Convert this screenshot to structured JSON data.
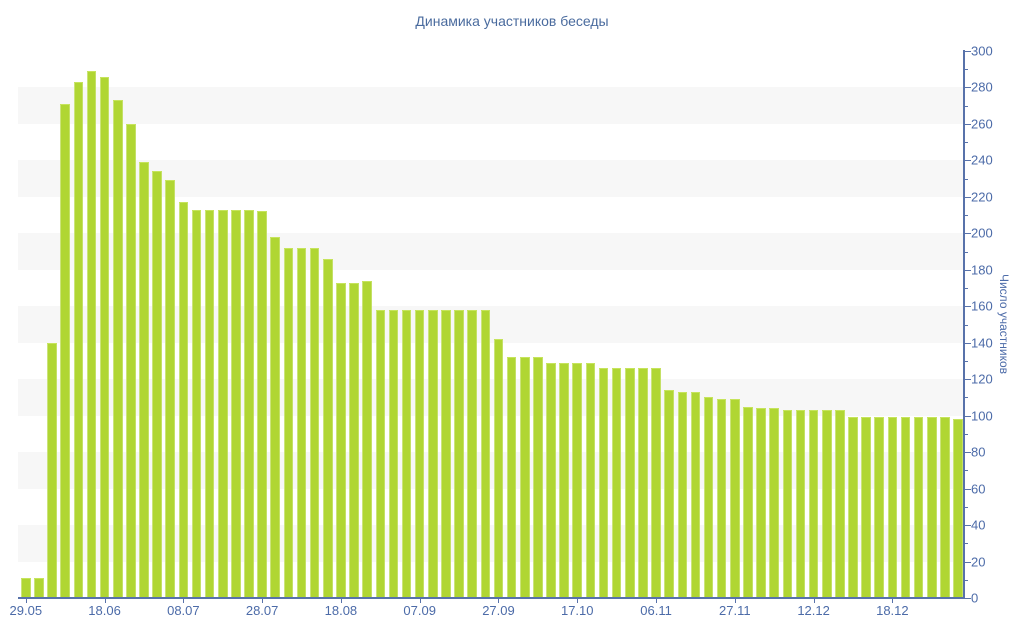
{
  "chart_data": {
    "type": "bar",
    "title": "Динамика участников беседы",
    "xlabel": "",
    "ylabel": "Число участников",
    "ylim": [
      0,
      300
    ],
    "y_tick_interval": 20,
    "y_minor_tick_interval": 10,
    "grid": "alternate horizontal gray bands",
    "grid_bands_y": [
      [
        20,
        40
      ],
      [
        60,
        80
      ],
      [
        100,
        120
      ],
      [
        140,
        160
      ],
      [
        180,
        200
      ],
      [
        220,
        240
      ],
      [
        260,
        280
      ]
    ],
    "legend": "none",
    "x_tick_labels": [
      "29.05",
      "18.06",
      "08.07",
      "28.07",
      "18.08",
      "07.09",
      "27.09",
      "17.10",
      "06.11",
      "27.11",
      "12.12",
      "18.12"
    ],
    "bars_per_x_label": 6,
    "values": [
      11,
      11,
      140,
      271,
      283,
      289,
      286,
      273,
      260,
      239,
      234,
      229,
      217,
      213,
      213,
      213,
      213,
      213,
      212,
      198,
      192,
      192,
      192,
      186,
      173,
      173,
      174,
      158,
      158,
      158,
      158,
      158,
      158,
      158,
      158,
      158,
      142,
      132,
      132,
      132,
      129,
      129,
      129,
      129,
      126,
      126,
      126,
      126,
      126,
      114,
      113,
      113,
      110,
      109,
      109,
      105,
      104,
      104,
      103,
      103,
      103,
      103,
      103,
      99,
      99,
      99,
      99,
      99,
      99,
      99,
      99,
      98
    ],
    "colors": {
      "bar": "#b0d633",
      "band": "#f7f7f7",
      "axis": "#5872aa",
      "tick_text": "#4c6ba8",
      "title_text": "#4a6b9e",
      "background": "#ffffff"
    }
  }
}
